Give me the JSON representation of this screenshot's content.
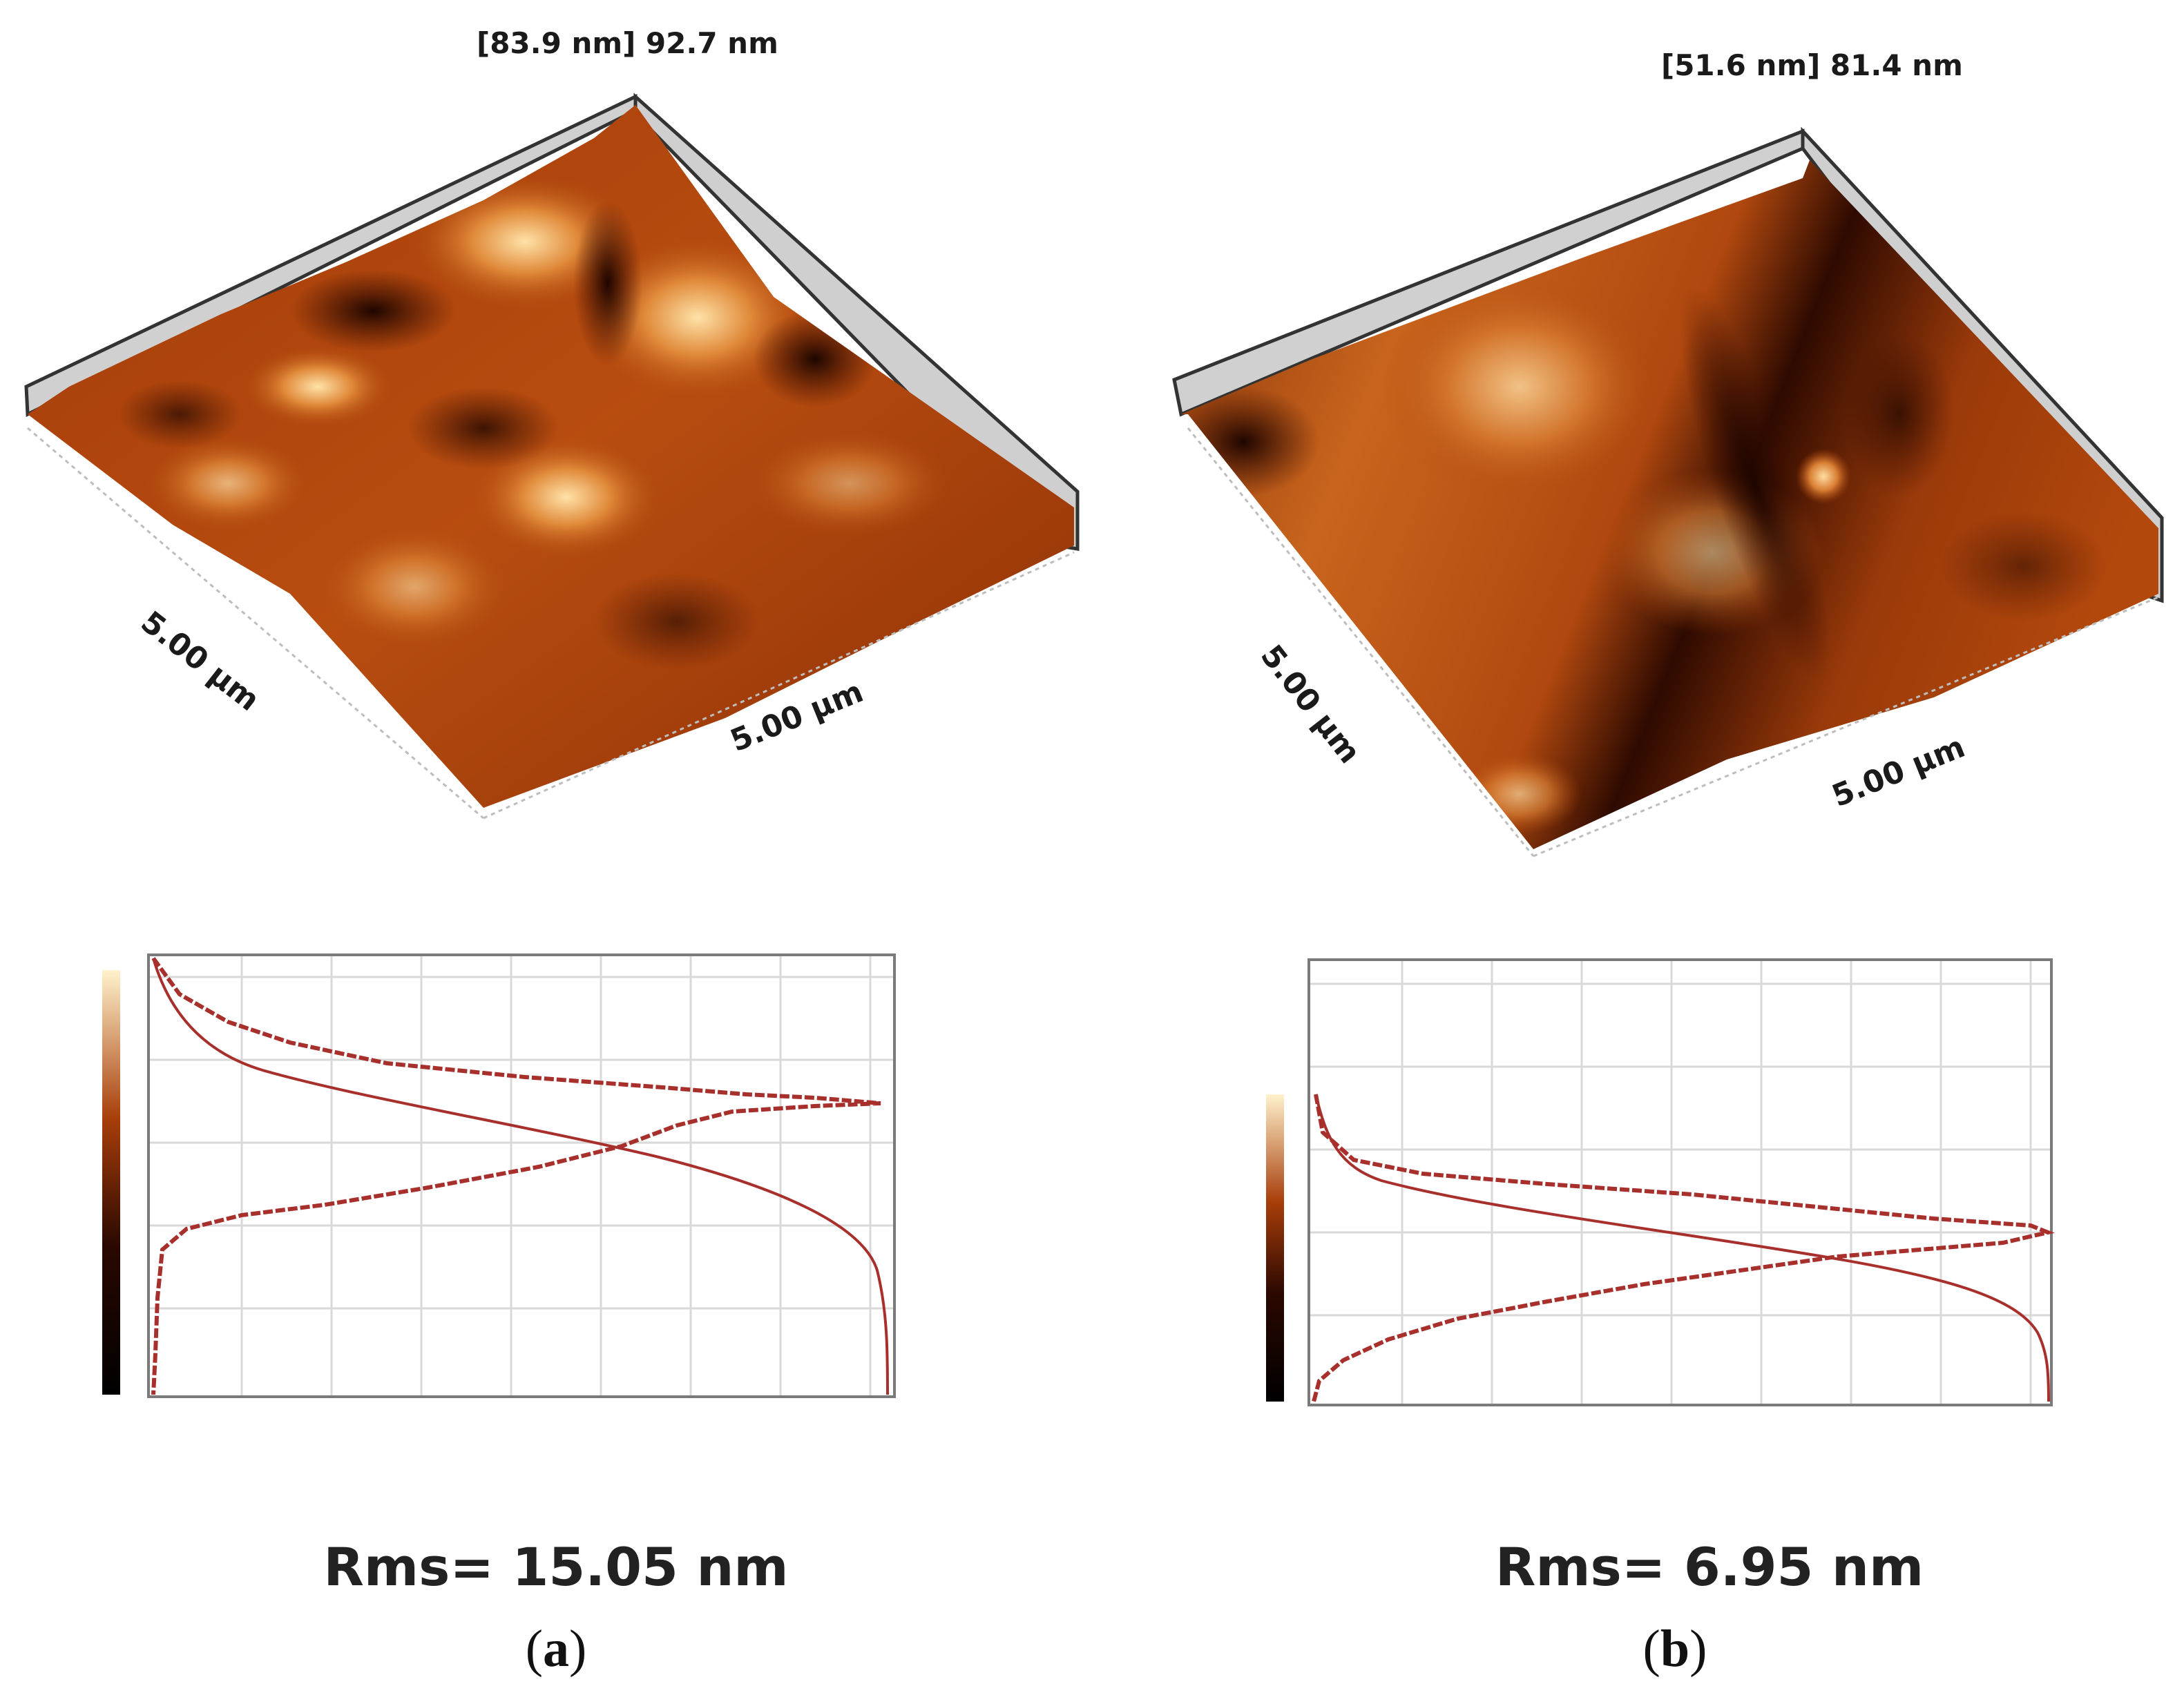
{
  "panels": [
    {
      "z_range": "[83.9 nm] 92.7 nm",
      "axis_left": "5.00 µm",
      "axis_right": "5.00 µm",
      "rms": "Rms= 15.05 nm",
      "label_open": "(",
      "label_letter": "a",
      "label_close": ")"
    },
    {
      "z_range": "[51.6 nm] 81.4 nm",
      "axis_left": "5.00 µm",
      "axis_right": "5.00 µm",
      "rms": "Rms= 6.95 nm",
      "label_open": "(",
      "label_letter": "b",
      "label_close": ")"
    }
  ],
  "colors": {
    "afm_dark": "#1e0600",
    "afm_mid": "#b3480c",
    "afm_light": "#ffe2a8",
    "curve": "#a8302c",
    "grid": "#d9d9d9"
  }
}
